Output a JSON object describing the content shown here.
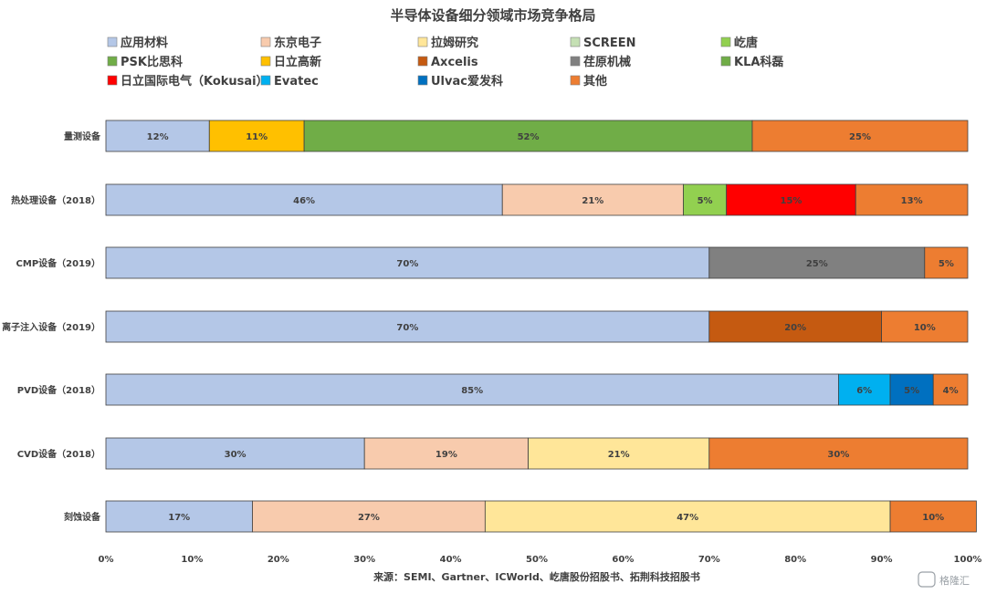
{
  "chart_data": {
    "type": "bar",
    "orientation": "horizontal",
    "stacked": true,
    "percent": true,
    "title": "半导体设备细分领域市场竞争格局",
    "source": "来源：SEMI、Gartner、ICWorld、屹唐股份招股书、拓荆科技招股书",
    "watermark": "格隆汇",
    "xlim": [
      0,
      100
    ],
    "x_ticks": [
      "0%",
      "10%",
      "20%",
      "30%",
      "40%",
      "50%",
      "60%",
      "70%",
      "80%",
      "90%",
      "100%"
    ],
    "grid": false,
    "legend_position": "top",
    "legend": [
      {
        "name": "应用材料",
        "color": "#b4c7e7"
      },
      {
        "name": "东京电子",
        "color": "#f8cbad"
      },
      {
        "name": "拉姆研究",
        "color": "#ffe699"
      },
      {
        "name": "SCREEN",
        "color": "#c5e0b4"
      },
      {
        "name": "屹唐",
        "color": "#92d050"
      },
      {
        "name": "PSK比思科",
        "color": "#70ad47"
      },
      {
        "name": "日立高新",
        "color": "#ffc000"
      },
      {
        "name": "Axcelis",
        "color": "#c55a11"
      },
      {
        "name": "荏原机械",
        "color": "#808080"
      },
      {
        "name": "KLA科磊",
        "color": "#70ad47"
      },
      {
        "name": "日立国际电气（Kokusai）",
        "color": "#ff0000"
      },
      {
        "name": "Evatec",
        "color": "#00b0f0"
      },
      {
        "name": "Ulvac爱发科",
        "color": "#0070c0"
      },
      {
        "name": "其他",
        "color": "#ed7d31"
      }
    ],
    "categories": [
      "量测设备",
      "热处理设备（2018）",
      "CMP设备（2019）",
      "离子注入设备（2019）",
      "PVD设备（2018）",
      "CVD设备（2018）",
      "刻蚀设备"
    ],
    "bars": [
      {
        "segments": [
          {
            "series": "应用材料",
            "value": 12,
            "label": "12%"
          },
          {
            "series": "日立高新",
            "value": 11,
            "label": "11%"
          },
          {
            "series": "KLA科磊",
            "value": 52,
            "label": "52%"
          },
          {
            "series": "其他",
            "value": 25,
            "label": "25%"
          }
        ]
      },
      {
        "segments": [
          {
            "series": "应用材料",
            "value": 46,
            "label": "46%"
          },
          {
            "series": "东京电子",
            "value": 21,
            "label": "21%"
          },
          {
            "series": "屹唐",
            "value": 5,
            "label": "5%"
          },
          {
            "series": "日立国际电气（Kokusai）",
            "value": 15,
            "label": "15%"
          },
          {
            "series": "其他",
            "value": 13,
            "label": "13%"
          }
        ]
      },
      {
        "segments": [
          {
            "series": "应用材料",
            "value": 70,
            "label": "70%"
          },
          {
            "series": "荏原机械",
            "value": 25,
            "label": "25%"
          },
          {
            "series": "其他",
            "value": 5,
            "label": "5%"
          }
        ]
      },
      {
        "segments": [
          {
            "series": "应用材料",
            "value": 70,
            "label": "70%"
          },
          {
            "series": "Axcelis",
            "value": 20,
            "label": "20%"
          },
          {
            "series": "其他",
            "value": 10,
            "label": "10%"
          }
        ]
      },
      {
        "segments": [
          {
            "series": "应用材料",
            "value": 85,
            "label": "85%"
          },
          {
            "series": "Evatec",
            "value": 6,
            "label": "6%"
          },
          {
            "series": "Ulvac爱发科",
            "value": 5,
            "label": "5%"
          },
          {
            "series": "其他",
            "value": 4,
            "label": "4%"
          }
        ]
      },
      {
        "segments": [
          {
            "series": "应用材料",
            "value": 30,
            "label": "30%"
          },
          {
            "series": "东京电子",
            "value": 19,
            "label": "19%"
          },
          {
            "series": "拉姆研究",
            "value": 21,
            "label": "21%"
          },
          {
            "series": "其他",
            "value": 30,
            "label": "30%"
          }
        ]
      },
      {
        "segments": [
          {
            "series": "应用材料",
            "value": 17,
            "label": "17%"
          },
          {
            "series": "东京电子",
            "value": 27,
            "label": "27%"
          },
          {
            "series": "拉姆研究",
            "value": 47,
            "label": "47%"
          },
          {
            "series": "其他",
            "value": 10,
            "label": "10%"
          }
        ]
      }
    ]
  }
}
